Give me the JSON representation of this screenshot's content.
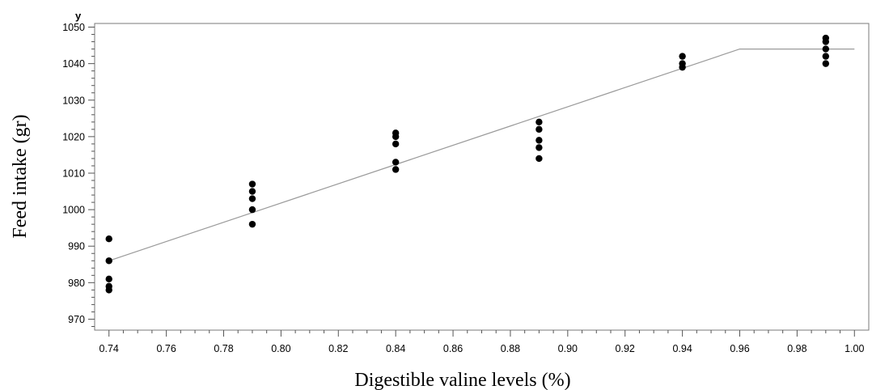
{
  "chart_data": {
    "type": "scatter",
    "title": "",
    "xlabel": "Digestible valine levels (%)",
    "ylabel": "Feed intake (gr)",
    "y_axis_letter": "y",
    "xlim": [
      0.735,
      1.005
    ],
    "ylim": [
      967,
      1051
    ],
    "x_ticks": [
      "0.74",
      "0.76",
      "0.78",
      "0.80",
      "0.82",
      "0.84",
      "0.86",
      "0.88",
      "0.90",
      "0.92",
      "0.94",
      "0.96",
      "0.98",
      "1.00"
    ],
    "y_ticks": [
      "970",
      "980",
      "990",
      "1000",
      "1010",
      "1020",
      "1030",
      "1040",
      "1050"
    ],
    "grid": false,
    "series": [
      {
        "kind": "points",
        "color": "#000000",
        "points": [
          {
            "x": 0.74,
            "y": 992
          },
          {
            "x": 0.74,
            "y": 986
          },
          {
            "x": 0.74,
            "y": 981
          },
          {
            "x": 0.74,
            "y": 979
          },
          {
            "x": 0.74,
            "y": 978
          },
          {
            "x": 0.79,
            "y": 1007
          },
          {
            "x": 0.79,
            "y": 1005
          },
          {
            "x": 0.79,
            "y": 1003
          },
          {
            "x": 0.79,
            "y": 1000
          },
          {
            "x": 0.79,
            "y": 996
          },
          {
            "x": 0.84,
            "y": 1021
          },
          {
            "x": 0.84,
            "y": 1020
          },
          {
            "x": 0.84,
            "y": 1018
          },
          {
            "x": 0.84,
            "y": 1013
          },
          {
            "x": 0.84,
            "y": 1011
          },
          {
            "x": 0.89,
            "y": 1024
          },
          {
            "x": 0.89,
            "y": 1022
          },
          {
            "x": 0.89,
            "y": 1019
          },
          {
            "x": 0.89,
            "y": 1017
          },
          {
            "x": 0.89,
            "y": 1014
          },
          {
            "x": 0.94,
            "y": 1042
          },
          {
            "x": 0.94,
            "y": 1040
          },
          {
            "x": 0.94,
            "y": 1039
          },
          {
            "x": 0.99,
            "y": 1047
          },
          {
            "x": 0.99,
            "y": 1046
          },
          {
            "x": 0.99,
            "y": 1044
          },
          {
            "x": 0.99,
            "y": 1042
          },
          {
            "x": 0.99,
            "y": 1040
          }
        ]
      },
      {
        "kind": "line",
        "color": "#9a9a9a",
        "points": [
          {
            "x": 0.74,
            "y": 986
          },
          {
            "x": 0.96,
            "y": 1044
          },
          {
            "x": 1.0,
            "y": 1044
          }
        ]
      }
    ]
  }
}
